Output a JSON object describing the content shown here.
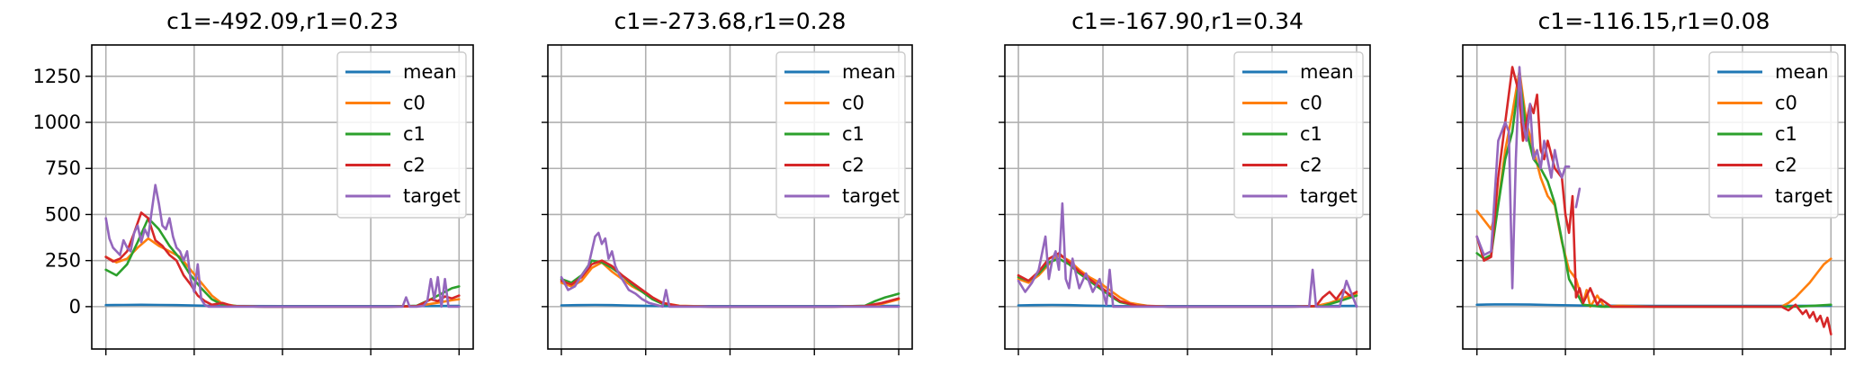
{
  "chart_data": [
    {
      "type": "line",
      "title": "c1=-492.09,r1=0.23",
      "xlabel": "",
      "ylabel": "",
      "ylim": [
        -230,
        1420
      ],
      "yticks": [
        0,
        250,
        500,
        750,
        1000,
        1250
      ],
      "ytick_labels": [
        "0",
        "250",
        "500",
        "750",
        "1000",
        "1250"
      ],
      "xlim": [
        -0.04,
        1.04
      ],
      "grid": true,
      "legend": "top-right",
      "series": [
        {
          "name": "mean",
          "color": "#1f77b4",
          "x": [
            0,
            0.05,
            0.1,
            0.15,
            0.2,
            0.3,
            0.5,
            0.7,
            0.85,
            1.0
          ],
          "y": [
            8,
            9,
            10,
            9,
            8,
            4,
            3,
            3,
            3,
            4
          ]
        },
        {
          "name": "c0",
          "color": "#ff7f0e",
          "x": [
            0,
            0.03,
            0.06,
            0.09,
            0.12,
            0.15,
            0.18,
            0.21,
            0.24,
            0.27,
            0.3,
            0.33,
            0.37,
            0.45,
            0.6,
            0.8,
            0.88,
            0.92,
            0.95,
            0.98,
            1.0
          ],
          "y": [
            270,
            240,
            260,
            320,
            370,
            330,
            300,
            270,
            200,
            130,
            60,
            15,
            3,
            0,
            0,
            0,
            3,
            15,
            25,
            35,
            40
          ]
        },
        {
          "name": "c1",
          "color": "#2ca02c",
          "x": [
            0,
            0.03,
            0.06,
            0.09,
            0.12,
            0.15,
            0.18,
            0.21,
            0.24,
            0.27,
            0.3,
            0.33,
            0.37,
            0.45,
            0.6,
            0.8,
            0.88,
            0.92,
            0.95,
            0.98,
            1.0
          ],
          "y": [
            200,
            170,
            230,
            350,
            480,
            420,
            330,
            260,
            170,
            100,
            40,
            10,
            3,
            0,
            0,
            0,
            5,
            40,
            70,
            100,
            110
          ]
        },
        {
          "name": "c2",
          "color": "#d62728",
          "x": [
            0,
            0.02,
            0.04,
            0.06,
            0.08,
            0.1,
            0.12,
            0.14,
            0.16,
            0.18,
            0.2,
            0.22,
            0.24,
            0.26,
            0.28,
            0.3,
            0.33,
            0.36,
            0.45,
            0.6,
            0.8,
            0.88,
            0.9,
            0.92,
            0.94,
            0.96,
            0.98,
            1.0
          ],
          "y": [
            270,
            245,
            260,
            300,
            400,
            510,
            480,
            360,
            330,
            280,
            250,
            170,
            120,
            60,
            30,
            10,
            20,
            3,
            0,
            0,
            0,
            3,
            20,
            40,
            30,
            55,
            45,
            60
          ]
        },
        {
          "name": "target",
          "color": "#9467bd",
          "x": [
            0,
            0.01,
            0.02,
            0.03,
            0.04,
            0.05,
            0.06,
            0.07,
            0.08,
            0.09,
            0.1,
            0.11,
            0.12,
            0.13,
            0.14,
            0.15,
            0.16,
            0.17,
            0.18,
            0.19,
            0.2,
            0.21,
            0.22,
            0.23,
            0.24,
            0.25,
            0.26,
            0.27,
            0.28,
            0.29,
            0.3,
            0.32,
            0.35,
            0.4,
            0.5,
            0.7,
            0.84,
            0.85,
            0.86,
            0.88,
            0.9,
            0.91,
            0.92,
            0.93,
            0.94,
            0.95,
            0.96,
            0.97,
            0.98,
            1.0
          ],
          "y": [
            480,
            370,
            320,
            300,
            280,
            360,
            320,
            300,
            400,
            440,
            350,
            420,
            380,
            520,
            660,
            560,
            440,
            420,
            480,
            380,
            320,
            300,
            250,
            300,
            150,
            80,
            230,
            40,
            10,
            0,
            0,
            0,
            0,
            0,
            0,
            0,
            0,
            50,
            0,
            0,
            5,
            30,
            150,
            40,
            160,
            0,
            150,
            0,
            0,
            0
          ]
        }
      ]
    },
    {
      "type": "line",
      "title": "c1=-273.68,r1=0.28",
      "xlabel": "",
      "ylabel": "",
      "ylim": [
        -230,
        1420
      ],
      "xlim": [
        -0.04,
        1.04
      ],
      "grid": true,
      "legend": "top-right",
      "series": [
        {
          "name": "mean",
          "color": "#1f77b4",
          "x": [
            0,
            0.05,
            0.1,
            0.15,
            0.2,
            0.3,
            0.5,
            0.7,
            0.85,
            1.0
          ],
          "y": [
            7,
            8,
            9,
            8,
            6,
            3,
            3,
            3,
            3,
            4
          ]
        },
        {
          "name": "c0",
          "color": "#ff7f0e",
          "x": [
            0,
            0.03,
            0.06,
            0.09,
            0.12,
            0.15,
            0.18,
            0.21,
            0.24,
            0.27,
            0.3,
            0.35,
            0.45,
            0.6,
            0.8,
            0.9,
            0.95,
            0.98,
            1.0
          ],
          "y": [
            130,
            110,
            140,
            210,
            240,
            190,
            150,
            110,
            80,
            50,
            20,
            5,
            0,
            0,
            0,
            3,
            15,
            30,
            40
          ]
        },
        {
          "name": "c1",
          "color": "#2ca02c",
          "x": [
            0,
            0.03,
            0.06,
            0.09,
            0.12,
            0.15,
            0.18,
            0.21,
            0.24,
            0.27,
            0.3,
            0.35,
            0.45,
            0.6,
            0.8,
            0.9,
            0.93,
            0.96,
            0.98,
            1.0
          ],
          "y": [
            150,
            130,
            170,
            250,
            240,
            210,
            170,
            120,
            80,
            40,
            15,
            3,
            0,
            0,
            0,
            5,
            30,
            50,
            60,
            70
          ]
        },
        {
          "name": "c2",
          "color": "#d62728",
          "x": [
            0,
            0.03,
            0.06,
            0.09,
            0.12,
            0.15,
            0.18,
            0.21,
            0.24,
            0.27,
            0.3,
            0.35,
            0.45,
            0.6,
            0.8,
            0.9,
            0.95,
            1.0
          ],
          "y": [
            140,
            120,
            160,
            230,
            250,
            220,
            170,
            130,
            90,
            50,
            20,
            3,
            0,
            0,
            0,
            3,
            20,
            45
          ]
        },
        {
          "name": "target",
          "color": "#9467bd",
          "x": [
            0,
            0.02,
            0.04,
            0.06,
            0.08,
            0.1,
            0.11,
            0.12,
            0.13,
            0.14,
            0.15,
            0.16,
            0.17,
            0.18,
            0.19,
            0.2,
            0.22,
            0.24,
            0.26,
            0.28,
            0.3,
            0.31,
            0.32,
            0.33,
            0.35,
            0.45,
            0.6,
            0.8,
            0.9,
            1.0
          ],
          "y": [
            160,
            90,
            110,
            170,
            220,
            380,
            400,
            340,
            370,
            260,
            300,
            220,
            180,
            150,
            120,
            90,
            70,
            40,
            20,
            10,
            0,
            90,
            0,
            0,
            0,
            0,
            0,
            0,
            0,
            0
          ]
        }
      ]
    },
    {
      "type": "line",
      "title": "c1=-167.90,r1=0.34",
      "xlabel": "",
      "ylabel": "",
      "ylim": [
        -230,
        1420
      ],
      "xlim": [
        -0.04,
        1.04
      ],
      "grid": true,
      "legend": "top-right",
      "series": [
        {
          "name": "mean",
          "color": "#1f77b4",
          "x": [
            0,
            0.05,
            0.1,
            0.15,
            0.2,
            0.3,
            0.5,
            0.7,
            0.85,
            1.0
          ],
          "y": [
            7,
            8,
            9,
            8,
            6,
            3,
            3,
            3,
            3,
            4
          ]
        },
        {
          "name": "c0",
          "color": "#ff7f0e",
          "x": [
            0,
            0.03,
            0.06,
            0.09,
            0.12,
            0.15,
            0.18,
            0.21,
            0.24,
            0.27,
            0.3,
            0.33,
            0.38,
            0.45,
            0.6,
            0.8,
            0.88,
            0.92,
            0.95,
            0.98,
            1.0
          ],
          "y": [
            150,
            130,
            170,
            230,
            280,
            250,
            200,
            160,
            130,
            90,
            50,
            20,
            5,
            0,
            0,
            0,
            3,
            20,
            40,
            60,
            70
          ]
        },
        {
          "name": "c1",
          "color": "#2ca02c",
          "x": [
            0,
            0.03,
            0.06,
            0.09,
            0.12,
            0.15,
            0.18,
            0.21,
            0.24,
            0.27,
            0.3,
            0.35,
            0.45,
            0.6,
            0.8,
            0.9,
            0.95,
            1.0
          ],
          "y": [
            160,
            140,
            180,
            240,
            260,
            230,
            180,
            140,
            100,
            60,
            25,
            5,
            0,
            0,
            0,
            3,
            30,
            60
          ]
        },
        {
          "name": "c2",
          "color": "#d62728",
          "x": [
            0,
            0.03,
            0.06,
            0.09,
            0.12,
            0.15,
            0.18,
            0.21,
            0.24,
            0.27,
            0.3,
            0.35,
            0.45,
            0.6,
            0.8,
            0.88,
            0.9,
            0.92,
            0.94,
            0.96,
            0.98,
            1.0
          ],
          "y": [
            170,
            140,
            190,
            260,
            290,
            240,
            190,
            150,
            110,
            70,
            30,
            5,
            0,
            0,
            0,
            3,
            50,
            80,
            40,
            90,
            60,
            80
          ]
        },
        {
          "name": "target",
          "color": "#9467bd",
          "x": [
            0,
            0.02,
            0.04,
            0.06,
            0.08,
            0.09,
            0.1,
            0.11,
            0.12,
            0.13,
            0.14,
            0.15,
            0.16,
            0.17,
            0.18,
            0.2,
            0.22,
            0.24,
            0.26,
            0.27,
            0.28,
            0.3,
            0.35,
            0.5,
            0.7,
            0.86,
            0.87,
            0.88,
            0.9,
            0.95,
            0.97,
            1.0
          ],
          "y": [
            140,
            80,
            130,
            200,
            380,
            150,
            250,
            300,
            200,
            560,
            150,
            100,
            260,
            180,
            100,
            180,
            80,
            150,
            10,
            200,
            0,
            0,
            0,
            0,
            0,
            0,
            200,
            0,
            0,
            0,
            140,
            0
          ]
        }
      ]
    },
    {
      "type": "line",
      "title": "c1=-116.15,r1=0.08",
      "xlabel": "",
      "ylabel": "",
      "ylim": [
        -230,
        1420
      ],
      "xlim": [
        -0.04,
        1.04
      ],
      "grid": true,
      "legend": "top-right",
      "series": [
        {
          "name": "mean",
          "color": "#1f77b4",
          "x": [
            0,
            0.05,
            0.1,
            0.15,
            0.2,
            0.3,
            0.5,
            0.7,
            0.85,
            1.0
          ],
          "y": [
            10,
            12,
            12,
            11,
            9,
            6,
            4,
            4,
            4,
            5
          ]
        },
        {
          "name": "c0",
          "color": "#ff7f0e",
          "x": [
            0,
            0.02,
            0.04,
            0.06,
            0.08,
            0.1,
            0.12,
            0.14,
            0.16,
            0.18,
            0.2,
            0.22,
            0.24,
            0.26,
            0.28,
            0.3,
            0.31,
            0.32,
            0.34,
            0.36,
            0.4,
            0.5,
            0.7,
            0.86,
            0.88,
            0.9,
            0.92,
            0.94,
            0.96,
            0.98,
            1.0
          ],
          "y": [
            520,
            470,
            420,
            560,
            850,
            1050,
            1280,
            1000,
            850,
            700,
            600,
            550,
            350,
            200,
            150,
            20,
            90,
            0,
            60,
            0,
            5,
            0,
            0,
            0,
            20,
            50,
            90,
            130,
            180,
            230,
            260
          ]
        },
        {
          "name": "c1",
          "color": "#2ca02c",
          "x": [
            0,
            0.02,
            0.04,
            0.06,
            0.08,
            0.1,
            0.12,
            0.14,
            0.16,
            0.18,
            0.2,
            0.22,
            0.24,
            0.26,
            0.28,
            0.3,
            0.35,
            0.45,
            0.6,
            0.8,
            0.9,
            0.95,
            1.0
          ],
          "y": [
            290,
            260,
            280,
            550,
            800,
            950,
            1250,
            950,
            800,
            750,
            680,
            560,
            360,
            150,
            80,
            10,
            0,
            0,
            0,
            0,
            0,
            5,
            10
          ]
        },
        {
          "name": "c2",
          "color": "#d62728",
          "x": [
            0,
            0.02,
            0.04,
            0.06,
            0.08,
            0.1,
            0.12,
            0.13,
            0.14,
            0.15,
            0.16,
            0.17,
            0.18,
            0.19,
            0.2,
            0.22,
            0.24,
            0.25,
            0.26,
            0.27,
            0.28,
            0.29,
            0.3,
            0.32,
            0.34,
            0.35,
            0.38,
            0.45,
            0.6,
            0.8,
            0.86,
            0.88,
            0.9,
            0.92,
            0.93,
            0.94,
            0.95,
            0.96,
            0.97,
            0.98,
            0.99,
            1.0
          ],
          "y": [
            380,
            250,
            270,
            700,
            1000,
            1300,
            1150,
            900,
            1000,
            1100,
            1050,
            1150,
            850,
            800,
            900,
            750,
            700,
            500,
            400,
            600,
            50,
            100,
            20,
            100,
            10,
            40,
            0,
            0,
            0,
            0,
            0,
            -20,
            10,
            -40,
            -20,
            -60,
            -30,
            -80,
            -50,
            -110,
            -60,
            -150
          ]
        },
        {
          "name": "target",
          "color": "#9467bd",
          "x": [
            0,
            0.02,
            0.04,
            0.06,
            0.08,
            0.09,
            0.1,
            0.11,
            0.12,
            0.13,
            0.14,
            0.15,
            0.16,
            0.17,
            0.18,
            0.19,
            0.2,
            0.21,
            0.22,
            0.23,
            0.24,
            0.25,
            0.26,
            0.27,
            0.28,
            0.29,
            0.3
          ],
          "y": [
            380,
            280,
            300,
            900,
            1000,
            950,
            100,
            800,
            1300,
            1000,
            900,
            1100,
            800,
            850,
            750,
            900,
            800,
            700,
            850,
            750,
            700,
            760,
            760,
            null,
            540,
            640,
            null
          ]
        }
      ]
    }
  ]
}
